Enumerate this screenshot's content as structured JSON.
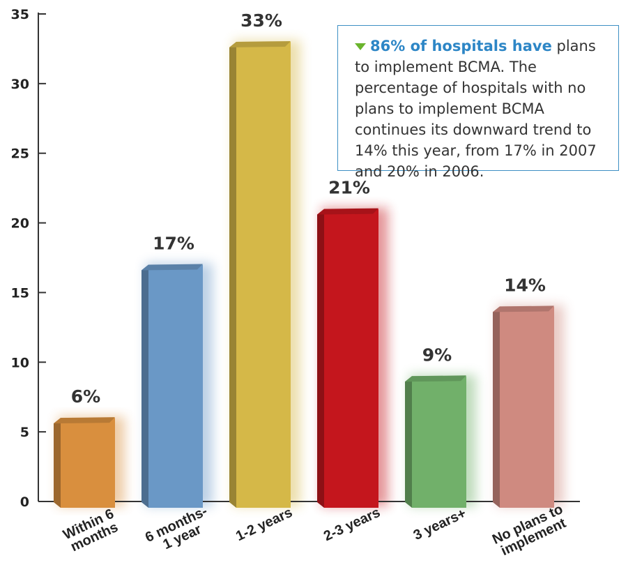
{
  "note": {
    "highlight": "86% of hospitals have",
    "text": " plans to implement BCMA. The percentage of hospitals with no plans to imple­ment BCMA continues its down­ward trend to 14% this year, from 17% in 2007 and 20% in 2006."
  },
  "colors": {
    "accent": "#2d86c6",
    "triangle": "#6ab42d"
  },
  "chart_data": {
    "type": "bar",
    "categories": [
      [
        "Within 6",
        "months"
      ],
      [
        "6 months-",
        "1 year"
      ],
      [
        "1-2 years"
      ],
      [
        "2-3 years"
      ],
      [
        "3 years+"
      ],
      [
        "No plans to",
        "implement"
      ]
    ],
    "values": [
      6,
      17,
      33,
      21,
      9,
      14
    ],
    "value_labels": [
      "6%",
      "17%",
      "33%",
      "21%",
      "9%",
      "14%"
    ],
    "colors": [
      "#d98f3e",
      "#6a98c6",
      "#d5b848",
      "#c4161d",
      "#71b06a",
      "#cf8a80"
    ],
    "ylim": [
      0,
      35
    ],
    "yticks": [
      0,
      5,
      10,
      15,
      20,
      25,
      30,
      35
    ],
    "title": "",
    "xlabel": "",
    "ylabel": ""
  }
}
